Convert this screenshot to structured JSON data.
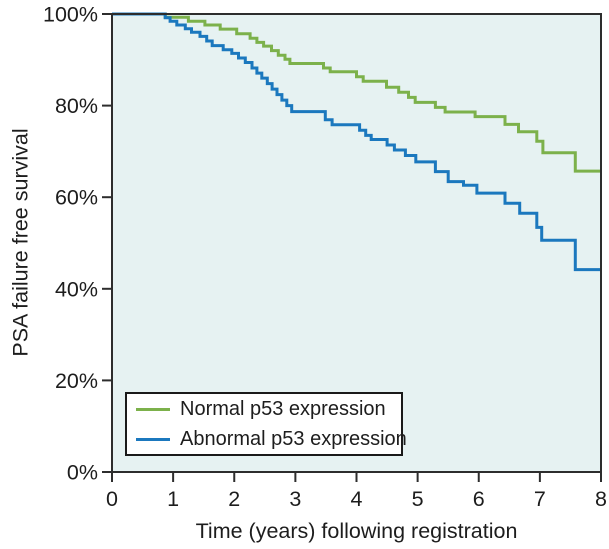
{
  "chart_data": {
    "type": "line",
    "subtype": "kaplan-meier-step-survival",
    "title": "",
    "xlabel": "Time (years) following registration",
    "ylabel": "PSA failure free survival",
    "xlim": [
      0,
      8
    ],
    "ylim": [
      0,
      100
    ],
    "x_ticks": [
      0,
      1,
      2,
      3,
      4,
      5,
      6,
      7,
      8
    ],
    "y_ticks": [
      0,
      20,
      40,
      60,
      80,
      100
    ],
    "y_tick_labels": [
      "0%",
      "20%",
      "40%",
      "60%",
      "80%",
      "100%"
    ],
    "grid": false,
    "plot_background": "#e6f2f2",
    "axis_color": "#2d2d2d",
    "text_color": "#1d1d1d",
    "legend": {
      "position": "bottom-left",
      "background": "#ffffff",
      "border_color": "#1a1a1a"
    },
    "series": [
      {
        "name": "Normal p53 expression",
        "color": "#7cb14b",
        "start": [
          0,
          100
        ],
        "steps": [
          [
            0.87,
            99.3
          ],
          [
            1.25,
            98.4
          ],
          [
            1.52,
            97.6
          ],
          [
            1.77,
            96.7
          ],
          [
            2.04,
            95.7
          ],
          [
            2.26,
            94.7
          ],
          [
            2.37,
            93.8
          ],
          [
            2.48,
            93.0
          ],
          [
            2.61,
            92.0
          ],
          [
            2.72,
            91.0
          ],
          [
            2.83,
            90.1
          ],
          [
            2.91,
            89.2
          ],
          [
            3.46,
            88.2
          ],
          [
            3.57,
            87.4
          ],
          [
            4.0,
            86.3
          ],
          [
            4.11,
            85.3
          ],
          [
            4.49,
            84.0
          ],
          [
            4.69,
            82.9
          ],
          [
            4.85,
            81.8
          ],
          [
            4.96,
            80.7
          ],
          [
            5.29,
            79.6
          ],
          [
            5.45,
            78.6
          ],
          [
            5.94,
            77.6
          ],
          [
            6.43,
            75.9
          ],
          [
            6.65,
            74.3
          ],
          [
            6.95,
            72.2
          ],
          [
            7.05,
            69.7
          ],
          [
            7.58,
            65.7
          ]
        ],
        "end_value": 65.7
      },
      {
        "name": "Abnormal p53 expression",
        "color": "#1b78be",
        "start": [
          0,
          100
        ],
        "steps": [
          [
            0.87,
            99.2
          ],
          [
            0.95,
            98.4
          ],
          [
            1.06,
            97.6
          ],
          [
            1.2,
            96.8
          ],
          [
            1.3,
            96.0
          ],
          [
            1.44,
            95.1
          ],
          [
            1.55,
            94.1
          ],
          [
            1.64,
            93.1
          ],
          [
            1.82,
            92.2
          ],
          [
            1.96,
            91.4
          ],
          [
            2.07,
            90.4
          ],
          [
            2.18,
            89.4
          ],
          [
            2.29,
            88.2
          ],
          [
            2.37,
            87.1
          ],
          [
            2.45,
            86.0
          ],
          [
            2.54,
            84.8
          ],
          [
            2.62,
            83.6
          ],
          [
            2.7,
            82.4
          ],
          [
            2.78,
            81.2
          ],
          [
            2.86,
            80.0
          ],
          [
            2.94,
            78.7
          ],
          [
            3.49,
            76.9
          ],
          [
            3.6,
            75.8
          ],
          [
            4.05,
            74.6
          ],
          [
            4.15,
            73.5
          ],
          [
            4.24,
            72.6
          ],
          [
            4.5,
            71.4
          ],
          [
            4.62,
            70.3
          ],
          [
            4.8,
            69.1
          ],
          [
            4.97,
            67.7
          ],
          [
            5.29,
            65.6
          ],
          [
            5.5,
            63.4
          ],
          [
            5.75,
            62.6
          ],
          [
            5.97,
            60.9
          ],
          [
            6.43,
            58.7
          ],
          [
            6.67,
            56.5
          ],
          [
            6.95,
            53.4
          ],
          [
            7.03,
            50.6
          ],
          [
            7.58,
            44.2
          ]
        ],
        "end_value": 44.2
      }
    ]
  }
}
